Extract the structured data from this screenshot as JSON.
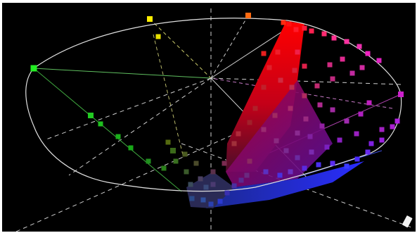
{
  "scene": {
    "background": "#000000",
    "wireframe_color": "#dcdcdc",
    "axis_color": "#cfcfcf",
    "hue_spoke_colors": {
      "green": "#4fbf4f",
      "yellow": "#cfcf6a",
      "red": "#d84a4a",
      "magenta": "#c85ac8",
      "blue": "#5a6ad8",
      "white": "#e6e6e6"
    },
    "handle_icon": "grip-handle-icon"
  }
}
